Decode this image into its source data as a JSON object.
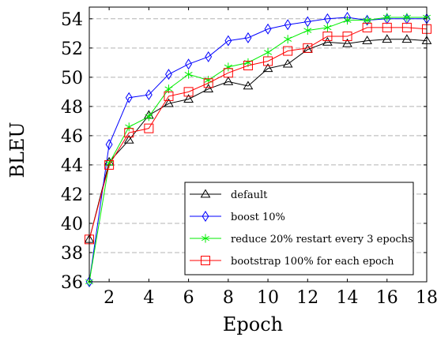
{
  "chart_data": {
    "type": "line",
    "xlabel": "Epoch",
    "ylabel": "BLEU",
    "xlim": [
      1,
      18
    ],
    "ylim": [
      36,
      54.8
    ],
    "x_ticks": [
      2,
      4,
      6,
      8,
      10,
      12,
      14,
      16,
      18
    ],
    "y_ticks": [
      36,
      38,
      40,
      42,
      44,
      46,
      48,
      50,
      52,
      54
    ],
    "grid": "horizontal dashed",
    "legend_position": "bottom-right",
    "x": [
      1,
      2,
      3,
      4,
      5,
      6,
      7,
      8,
      9,
      10,
      11,
      12,
      13,
      14,
      15,
      16,
      17,
      18
    ],
    "series": [
      {
        "name": "default",
        "color": "#000000",
        "marker": "triangle",
        "values": [
          38.9,
          44.2,
          45.7,
          47.4,
          48.2,
          48.5,
          49.2,
          49.7,
          49.4,
          50.6,
          50.9,
          51.9,
          52.4,
          52.3,
          52.5,
          52.6,
          52.6,
          52.5
        ]
      },
      {
        "name": "boost 10%",
        "color": "#0000ff",
        "marker": "diamond",
        "values": [
          36.0,
          45.4,
          48.6,
          48.8,
          50.2,
          50.9,
          51.4,
          52.5,
          52.7,
          53.3,
          53.6,
          53.8,
          54.0,
          54.1,
          53.9,
          54.0,
          54.0,
          54.0
        ]
      },
      {
        "name": "reduce 20% restart every 3 epochs",
        "color": "#00ee00",
        "marker": "star",
        "values": [
          36.0,
          44.1,
          46.6,
          47.3,
          49.2,
          50.2,
          49.8,
          50.7,
          51.0,
          51.7,
          52.6,
          53.2,
          53.4,
          53.9,
          53.9,
          54.1,
          54.1,
          54.1
        ]
      },
      {
        "name": "bootstrap 100% for each epoch",
        "color": "#ff0000",
        "marker": "square",
        "values": [
          38.9,
          44.0,
          46.2,
          46.5,
          48.7,
          49.0,
          49.6,
          50.3,
          50.8,
          51.1,
          51.8,
          52.0,
          52.8,
          52.8,
          53.4,
          53.4,
          53.4,
          53.3
        ]
      }
    ]
  }
}
